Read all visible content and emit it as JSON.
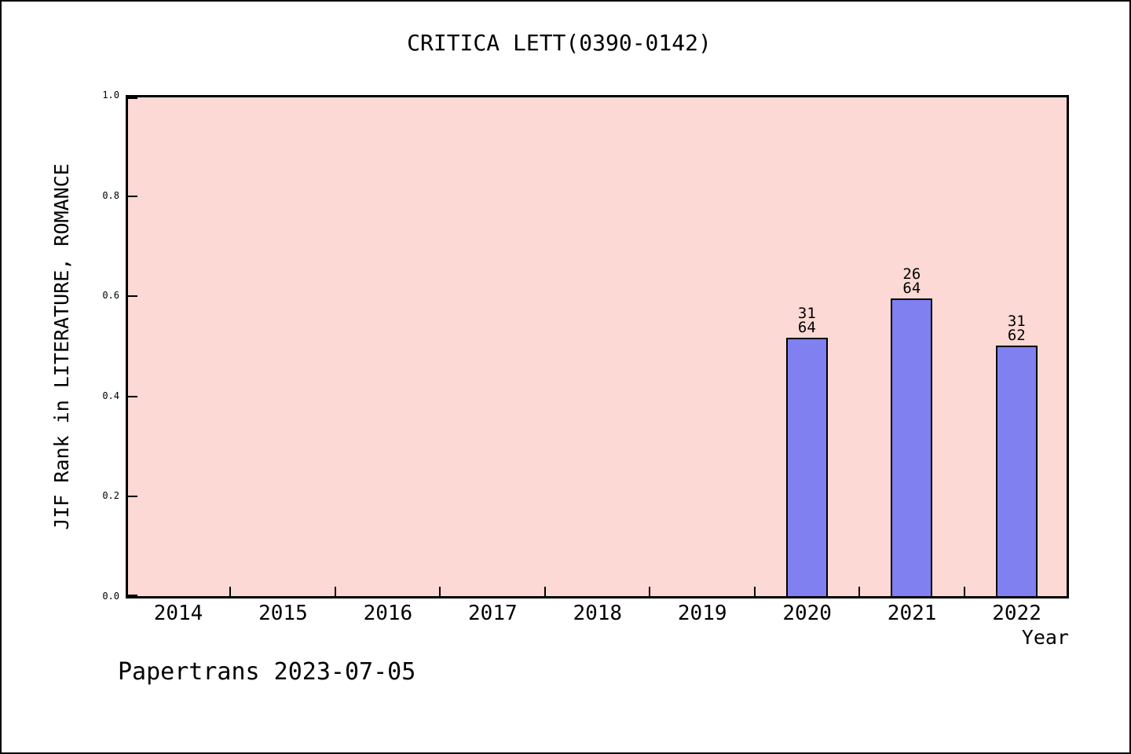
{
  "page": {
    "footer": "Papertrans 2023-07-05"
  },
  "chart_data": {
    "type": "bar",
    "title": "CRITICA LETT(0390-0142)",
    "xlabel": "Year",
    "ylabel": "JIF Rank in LITERATURE, ROMANCE",
    "categories": [
      "2014",
      "2015",
      "2016",
      "2017",
      "2018",
      "2019",
      "2020",
      "2021",
      "2022"
    ],
    "ylim": [
      0.0,
      1.0
    ],
    "yticks": [
      0.0,
      0.2,
      0.4,
      0.6,
      0.8,
      1.0
    ],
    "ytick_labels": [
      "0.0",
      "0.2",
      "0.4",
      "0.6",
      "0.8",
      "1.0"
    ],
    "grid": false,
    "legend": false,
    "bars": [
      {
        "category": "2020",
        "value": 0.515625,
        "annotation_lines": [
          "31",
          "64"
        ]
      },
      {
        "category": "2021",
        "value": 0.59375,
        "annotation_lines": [
          "26",
          "64"
        ]
      },
      {
        "category": "2022",
        "value": 0.5,
        "annotation_lines": [
          "31",
          "62"
        ]
      }
    ],
    "colors": {
      "bar_fill": "#8080f0",
      "bar_border": "#000000",
      "plot_background": "#fcd9d4",
      "text": "#000000"
    }
  }
}
